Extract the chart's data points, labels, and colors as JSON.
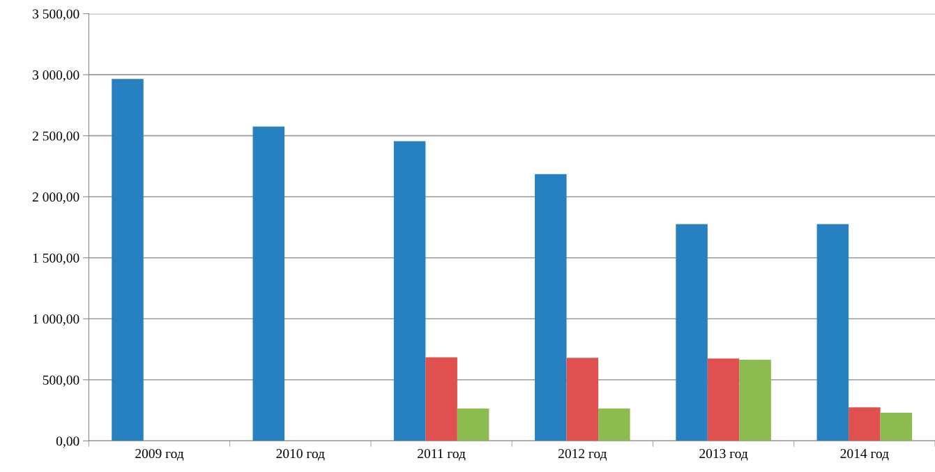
{
  "chart_data": {
    "type": "bar",
    "categories": [
      "2009 год",
      "2010 год",
      "2011 год",
      "2012 год",
      "2013 год",
      "2014 год"
    ],
    "series": [
      {
        "color": "#2781c1",
        "values": [
          2965,
          2575,
          2455,
          2185,
          1775,
          1775
        ]
      },
      {
        "color": "#e0504f",
        "values": [
          null,
          null,
          685,
          680,
          675,
          275
        ]
      },
      {
        "color": "#8cbc50",
        "values": [
          null,
          null,
          265,
          265,
          665,
          230
        ]
      }
    ],
    "ylim": [
      0,
      3500
    ],
    "yticks": [
      {
        "value": 0,
        "label": "0,00"
      },
      {
        "value": 500,
        "label": "500,00"
      },
      {
        "value": 1000,
        "label": "1 000,00"
      },
      {
        "value": 1500,
        "label": "1 500,00"
      },
      {
        "value": 2000,
        "label": "2 000,00"
      },
      {
        "value": 2500,
        "label": "2 500,00"
      },
      {
        "value": 3000,
        "label": "3 000,00"
      },
      {
        "value": 3500,
        "label": "3 500,00"
      }
    ],
    "grid": "y",
    "legend": false
  }
}
